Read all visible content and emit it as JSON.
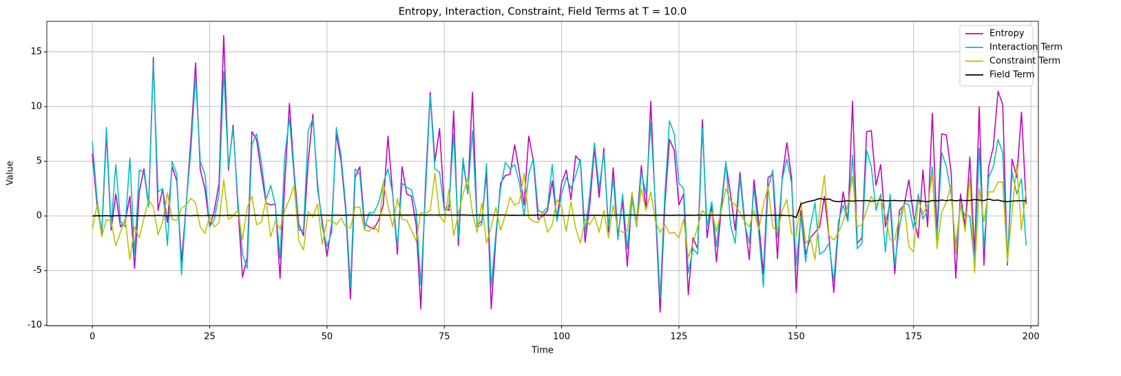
{
  "chart_data": {
    "type": "line",
    "title": "Entropy, Interaction, Constraint, Field Terms at T = 10.0",
    "x_label": "Time",
    "y_label": "Value",
    "x": [
      0,
      1,
      2,
      3,
      4,
      5,
      6,
      7,
      8,
      9,
      10,
      11,
      12,
      13,
      14,
      15,
      16,
      17,
      18,
      19,
      20,
      21,
      22,
      23,
      24,
      25,
      26,
      27,
      28,
      29,
      30,
      31,
      32,
      33,
      34,
      35,
      36,
      37,
      38,
      39,
      40,
      41,
      42,
      43,
      44,
      45,
      46,
      47,
      48,
      49,
      50,
      51,
      52,
      53,
      54,
      55,
      56,
      57,
      58,
      59,
      60,
      61,
      62,
      63,
      64,
      65,
      66,
      67,
      68,
      69,
      70,
      71,
      72,
      73,
      74,
      75,
      76,
      77,
      78,
      79,
      80,
      81,
      82,
      83,
      84,
      85,
      86,
      87,
      88,
      89,
      90,
      91,
      92,
      93,
      94,
      95,
      96,
      97,
      98,
      99,
      100,
      101,
      102,
      103,
      104,
      105,
      106,
      107,
      108,
      109,
      110,
      111,
      112,
      113,
      114,
      115,
      116,
      117,
      118,
      119,
      120,
      121,
      122,
      123,
      124,
      125,
      126,
      127,
      128,
      129,
      130,
      131,
      132,
      133,
      134,
      135,
      136,
      137,
      138,
      139,
      140,
      141,
      142,
      143,
      144,
      145,
      146,
      147,
      148,
      149,
      150,
      151,
      152,
      153,
      154,
      155,
      156,
      157,
      158,
      159,
      160,
      161,
      162,
      163,
      164,
      165,
      166,
      167,
      168,
      169,
      170,
      171,
      172,
      173,
      174,
      175,
      176,
      177,
      178,
      179,
      180,
      181,
      182,
      183,
      184,
      185,
      186,
      187,
      188,
      189,
      190,
      191,
      192,
      193,
      194,
      195,
      196,
      197,
      198,
      199
    ],
    "series": [
      {
        "name": "Entropy",
        "color": "#bf00bf",
        "values": [
          5.7,
          1.0,
          -1.8,
          7.5,
          -1.3,
          2.0,
          -1.0,
          -0.5,
          1.8,
          -4.8,
          2.2,
          4.3,
          1.0,
          14.5,
          0.5,
          2.5,
          -0.6,
          4.5,
          3.2,
          -4.2,
          1.0,
          7.0,
          14.0,
          4.2,
          2.5,
          -1.0,
          0.5,
          3.0,
          16.5,
          4.2,
          8.3,
          1.0,
          -5.6,
          -3.8,
          7.7,
          7.0,
          4.0,
          1.2,
          1.0,
          1.1,
          -5.7,
          3.0,
          10.3,
          4.0,
          -0.8,
          -1.8,
          5.0,
          9.3,
          2.5,
          -0.5,
          -3.7,
          -0.8,
          7.5,
          5.0,
          0.5,
          -7.6,
          3.5,
          4.5,
          -0.7,
          -1.0,
          -1.2,
          -0.4,
          1.0,
          7.3,
          2.0,
          -3.5,
          4.5,
          2.0,
          1.8,
          -0.8,
          -8.5,
          3.0,
          11.3,
          5.0,
          8.0,
          0.8,
          0.5,
          9.6,
          -2.7,
          5.0,
          2.0,
          11.3,
          -0.8,
          -0.5,
          4.0,
          -8.5,
          -2.0,
          3.0,
          3.7,
          3.8,
          6.5,
          4.0,
          1.0,
          7.3,
          5.0,
          -0.3,
          0.0,
          0.5,
          3.2,
          -0.3,
          3.0,
          4.2,
          1.5,
          5.5,
          5.0,
          -2.4,
          1.0,
          6.2,
          1.7,
          6.2,
          -1.5,
          4.4,
          -1.8,
          1.4,
          -4.6,
          1.9,
          -0.7,
          4.6,
          0.5,
          10.5,
          0.5,
          -8.8,
          1.0,
          7.0,
          6.0,
          1.0,
          2.0,
          -7.2,
          -2.0,
          -3.0,
          8.8,
          -2.0,
          1.0,
          -4.2,
          0.5,
          4.8,
          2.0,
          -1.3,
          4.0,
          -0.4,
          -4.0,
          3.3,
          -0.5,
          -5.3,
          3.5,
          3.8,
          -3.9,
          3.5,
          6.7,
          3.5,
          -7.0,
          0.5,
          -3.5,
          -2.0,
          -1.5,
          -1.0,
          1.8,
          -2.0,
          -7.0,
          -1.0,
          2.2,
          -0.5,
          10.5,
          -2.5,
          -2.0,
          7.7,
          7.8,
          2.8,
          4.7,
          -1.0,
          1.3,
          -5.3,
          0.5,
          1.0,
          3.3,
          0.0,
          -2.0,
          4.2,
          -1.0,
          9.4,
          -1.5,
          7.5,
          7.4,
          4.0,
          -5.7,
          2.0,
          -1.0,
          5.4,
          -3.5,
          10.0,
          -4.5,
          4.5,
          6.3,
          11.4,
          10.2,
          -4.5,
          5.2,
          3.5,
          9.5,
          1.1
        ]
      },
      {
        "name": "Interaction Term",
        "color": "#00bfbf",
        "values": [
          6.8,
          1.5,
          -1.5,
          8.1,
          -1.0,
          4.7,
          -0.5,
          -1.0,
          5.3,
          -3.5,
          4.2,
          4.0,
          0.8,
          14.0,
          2.2,
          2.5,
          -2.7,
          5.0,
          3.8,
          -5.4,
          1.0,
          6.0,
          12.8,
          5.0,
          3.8,
          -1.0,
          -0.3,
          2.0,
          13.2,
          4.5,
          8.0,
          1.5,
          -3.5,
          -4.8,
          6.5,
          7.5,
          5.0,
          1.5,
          2.8,
          1.0,
          -3.9,
          5.5,
          9.0,
          3.5,
          -1.3,
          -1.3,
          7.8,
          8.9,
          3.0,
          -1.0,
          -2.8,
          -1.5,
          8.1,
          5.5,
          1.0,
          -6.5,
          4.3,
          3.8,
          -1.2,
          0.3,
          0.3,
          1.2,
          3.0,
          4.3,
          2.0,
          -2.8,
          3.0,
          2.6,
          2.4,
          0.5,
          -6.3,
          2.0,
          11.0,
          4.3,
          4.0,
          0.5,
          1.0,
          7.5,
          -2.0,
          5.3,
          2.0,
          7.8,
          -1.0,
          -0.8,
          4.8,
          -6.5,
          -1.5,
          2.5,
          4.9,
          4.3,
          4.7,
          3.0,
          0.0,
          3.8,
          5.3,
          0.5,
          0.3,
          0.8,
          4.7,
          -0.5,
          2.0,
          3.5,
          2.5,
          3.7,
          5.2,
          -1.5,
          2.0,
          6.7,
          2.5,
          5.8,
          -1.0,
          3.5,
          -2.2,
          2.0,
          -3.0,
          1.5,
          -1.0,
          4.0,
          2.0,
          8.5,
          1.0,
          -7.5,
          2.0,
          8.7,
          7.5,
          3.0,
          2.5,
          -5.2,
          -3.0,
          -3.5,
          8.0,
          -1.0,
          1.3,
          -2.8,
          1.0,
          5.0,
          -0.8,
          -2.5,
          3.5,
          -0.7,
          -2.5,
          2.5,
          -1.5,
          -6.5,
          2.5,
          4.2,
          -2.0,
          3.3,
          5.2,
          3.0,
          -4.5,
          0.0,
          -4.2,
          -1.0,
          1.2,
          -3.5,
          -3.2,
          -2.5,
          -6.0,
          -0.5,
          1.0,
          -0.5,
          5.6,
          -3.0,
          -2.5,
          6.0,
          4.5,
          0.5,
          2.0,
          -3.3,
          2.0,
          -4.5,
          -1.0,
          1.2,
          1.0,
          -1.2,
          2.0,
          -0.3,
          0.5,
          4.5,
          -2.2,
          5.8,
          4.5,
          2.0,
          -2.7,
          1.0,
          0.0,
          0.0,
          -4.5,
          6.2,
          -3.0,
          3.5,
          4.5,
          7.0,
          5.8,
          -4.3,
          4.0,
          2.0,
          3.4,
          -2.7
        ]
      },
      {
        "name": "Constraint Term",
        "color": "#bfbf00",
        "values": [
          -1.2,
          1.0,
          -1.9,
          -0.3,
          -0.5,
          -2.7,
          -1.5,
          -0.2,
          -4.0,
          -1.0,
          -2.0,
          -0.2,
          1.5,
          0.8,
          -1.7,
          -0.5,
          2.1,
          -0.3,
          -0.4,
          0.7,
          1.0,
          1.6,
          1.2,
          -1.0,
          -1.6,
          0.0,
          -1.0,
          -0.6,
          3.3,
          -0.3,
          0.0,
          0.5,
          -2.2,
          0.8,
          1.8,
          -0.8,
          -0.6,
          1.5,
          -1.9,
          -0.5,
          -1.2,
          0.5,
          1.5,
          2.8,
          -2.3,
          -3.1,
          0.4,
          -0.1,
          1.1,
          -2.6,
          -0.4,
          -0.4,
          -0.8,
          -0.2,
          -1.0,
          -1.1,
          0.8,
          0.8,
          -1.3,
          -1.4,
          -0.9,
          -1.5,
          3.0,
          1.0,
          -1.0,
          1.6,
          -0.3,
          -0.4,
          -1.3,
          -2.3,
          0.3,
          0.2,
          0.5,
          3.9,
          0.0,
          -0.6,
          2.4,
          -1.8,
          0.2,
          2.0,
          3.5,
          0.3,
          -1.5,
          1.2,
          -2.5,
          -1.0,
          0.8,
          -1.3,
          0.0,
          1.7,
          1.0,
          1.2,
          3.9,
          -0.2,
          -0.5,
          -0.6,
          0.4,
          -1.5,
          -0.8,
          1.5,
          0.8,
          -1.4,
          1.3,
          -1.1,
          -2.5,
          -0.3,
          -0.8,
          0.0,
          -1.5,
          0.5,
          -2.0,
          1.0,
          -1.2,
          -1.5,
          -1.4,
          2.2,
          -0.8,
          2.5,
          0.5,
          2.2,
          -0.5,
          -1.5,
          -0.8,
          -1.6,
          -1.5,
          -2.0,
          -0.3,
          -3.8,
          -2.5,
          -1.0,
          0.5,
          0.0,
          0.4,
          -1.4,
          0.4,
          2.5,
          1.4,
          1.0,
          0.3,
          -0.5,
          -1.0,
          0.5,
          -1.3,
          1.0,
          2.7,
          -1.0,
          -1.5,
          0.5,
          1.5,
          -1.6,
          -1.8,
          1.3,
          -2.5,
          -2.0,
          -4.0,
          0.5,
          3.7,
          -1.8,
          -2.2,
          -1.5,
          -0.5,
          1.0,
          3.6,
          -1.0,
          -0.8,
          0.5,
          1.8,
          1.0,
          1.6,
          0.0,
          -2.2,
          -2.2,
          0.0,
          1.0,
          -2.8,
          -3.3,
          1.5,
          0.2,
          1.0,
          3.8,
          -3.0,
          0.3,
          1.3,
          2.8,
          -3.5,
          1.0,
          -1.4,
          3.5,
          -5.2,
          2.5,
          -0.5,
          2.2,
          2.2,
          3.1,
          3.1,
          -4.2,
          0.4,
          4.7,
          -1.3,
          2.5
        ]
      },
      {
        "name": "Field Term",
        "color": "#000000",
        "values": [
          0.0,
          0.02,
          0.01,
          0.03,
          0.0,
          0.02,
          0.04,
          0.01,
          0.03,
          0.02,
          0.03,
          0.01,
          0.04,
          0.02,
          0.05,
          0.03,
          0.02,
          0.04,
          0.03,
          0.05,
          0.04,
          0.02,
          0.05,
          0.03,
          0.04,
          0.06,
          0.03,
          0.05,
          0.04,
          0.06,
          0.05,
          0.03,
          0.06,
          0.04,
          0.05,
          0.07,
          0.04,
          0.06,
          0.05,
          0.07,
          0.06,
          0.04,
          0.07,
          0.05,
          0.06,
          0.08,
          0.05,
          0.07,
          0.06,
          0.08,
          0.07,
          0.05,
          0.08,
          0.06,
          0.07,
          0.09,
          0.06,
          0.08,
          0.07,
          0.09,
          0.08,
          0.06,
          0.09,
          0.07,
          0.08,
          0.1,
          0.07,
          0.09,
          0.08,
          0.1,
          0.09,
          0.07,
          0.1,
          0.08,
          0.09,
          0.1,
          0.08,
          0.09,
          0.07,
          0.1,
          0.08,
          0.06,
          0.09,
          0.07,
          0.08,
          0.1,
          0.07,
          0.09,
          0.08,
          0.06,
          0.07,
          0.05,
          0.08,
          0.06,
          0.07,
          0.09,
          0.06,
          0.08,
          0.07,
          0.05,
          0.06,
          0.04,
          0.07,
          0.05,
          0.06,
          0.08,
          0.05,
          0.07,
          0.06,
          0.04,
          0.07,
          0.05,
          0.08,
          0.06,
          0.07,
          0.09,
          0.06,
          0.08,
          0.07,
          0.05,
          0.06,
          0.08,
          0.07,
          0.05,
          0.06,
          0.08,
          0.05,
          0.07,
          0.06,
          0.08,
          0.07,
          0.05,
          0.06,
          0.08,
          0.06,
          0.05,
          0.07,
          0.06,
          0.04,
          0.06,
          0.05,
          0.07,
          0.06,
          0.04,
          0.05,
          0.07,
          0.05,
          0.06,
          0.04,
          0.03,
          -0.15,
          1.1,
          1.25,
          1.35,
          1.45,
          1.6,
          1.5,
          1.55,
          1.35,
          1.3,
          1.35,
          1.4,
          1.35,
          1.4,
          1.38,
          1.42,
          1.35,
          1.4,
          1.45,
          1.38,
          1.4,
          1.42,
          1.38,
          1.4,
          1.36,
          1.42,
          1.4,
          1.35,
          1.3,
          1.42,
          1.38,
          1.45,
          1.4,
          1.46,
          1.38,
          1.45,
          1.4,
          1.42,
          1.5,
          1.45,
          1.4,
          1.55,
          1.42,
          1.45,
          1.35,
          1.3,
          1.36,
          1.38,
          1.4,
          1.38
        ]
      }
    ],
    "xlim": [
      -9.7,
      201.6
    ],
    "ylim": [
      -10.05,
      17.8
    ],
    "xticks": [
      0,
      25,
      50,
      75,
      100,
      125,
      150,
      175,
      200
    ],
    "yticks": [
      -10,
      -5,
      0,
      5,
      10,
      15
    ],
    "grid": true,
    "legend": "upper right"
  }
}
